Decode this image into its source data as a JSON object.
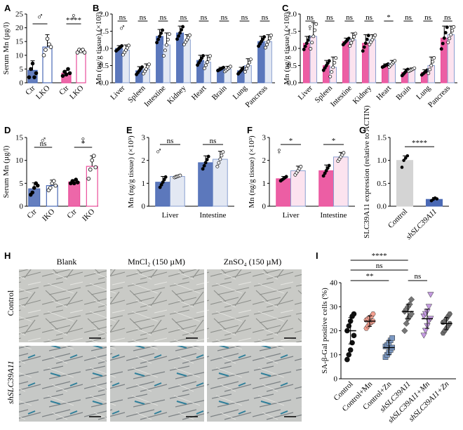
{
  "chart_data": [
    {
      "panel": "A",
      "type": "bar",
      "ylabel": "Serum Mn (µg/l)",
      "ylim": [
        0,
        25
      ],
      "yticks": [
        0,
        5,
        10,
        15,
        20,
        25
      ],
      "categories": [
        "Ctr",
        "LKO",
        "Ctr",
        "LKO"
      ],
      "colors": [
        "#4a69b5",
        "#4a69b5",
        "#ea4c9a",
        "#ea4c9a"
      ],
      "fills": [
        "solid",
        "open",
        "solid",
        "open"
      ],
      "values": [
        4.5,
        13,
        3.5,
        11.5
      ],
      "err": [
        3.5,
        4.5,
        1,
        0.8
      ],
      "points": [
        [
          2,
          5,
          7,
          2,
          3.5
        ],
        [
          10,
          12,
          16,
          14,
          13
        ],
        [
          2.5,
          4,
          3,
          5,
          3.5
        ],
        [
          11,
          12,
          11.5,
          12,
          11
        ]
      ],
      "groups": [
        {
          "sex": "♂",
          "cats": [
            0,
            1
          ],
          "label": ""
        },
        {
          "sex": "♀",
          "cats": [
            2,
            3
          ],
          "label": "****"
        }
      ]
    },
    {
      "panel": "B",
      "type": "bar",
      "ylabel": "Mn (ng/g tissue) (×10³)",
      "sex": "♂",
      "ylim": [
        0,
        2.0
      ],
      "yticks": [
        0.0,
        0.5,
        1.0,
        1.5,
        2.0
      ],
      "categories": [
        "Liver",
        "Spleen",
        "Intestine",
        "Kidney",
        "Heart",
        "Brain",
        "Lung",
        "Pancreas"
      ],
      "series": [
        {
          "values": [
            1.0,
            0.35,
            1.35,
            1.45,
            0.65,
            0.4,
            0.35,
            1.2
          ]
        },
        {
          "values": [
            0.95,
            0.4,
            1.1,
            1.25,
            0.6,
            0.4,
            0.5,
            1.2
          ]
        }
      ],
      "err": [
        [
          0.08,
          0.12,
          0.2,
          0.2,
          0.15,
          0.05,
          0.1,
          0.15
        ],
        [
          0.15,
          0.15,
          0.35,
          0.15,
          0.2,
          0.08,
          0.2,
          0.2
        ]
      ],
      "sig": [
        "ns",
        "ns",
        "ns",
        "ns",
        "ns",
        "ns",
        "ns",
        "ns"
      ]
    },
    {
      "panel": "C",
      "type": "bar",
      "ylabel": "Mn (ng/g tissue) (×10³)",
      "sex": "♀",
      "ylim": [
        0,
        2.0
      ],
      "yticks": [
        0.0,
        0.5,
        1.0,
        1.5,
        2.0
      ],
      "categories": [
        "Liver",
        "Spleen",
        "Intestine",
        "Kidney",
        "Heart",
        "Brain",
        "Lung",
        "Pancreas"
      ],
      "series": [
        {
          "values": [
            1.15,
            0.5,
            1.2,
            1.15,
            0.5,
            0.3,
            0.3,
            1.3
          ]
        },
        {
          "values": [
            1.35,
            0.45,
            1.25,
            1.25,
            0.55,
            0.38,
            0.5,
            1.4
          ]
        }
      ],
      "err": [
        [
          0.2,
          0.15,
          0.1,
          0.25,
          0.05,
          0.1,
          0.08,
          0.35
        ],
        [
          0.4,
          0.3,
          0.2,
          0.15,
          0.1,
          0.05,
          0.25,
          0.25
        ]
      ],
      "sig": [
        "ns",
        "ns",
        "ns",
        "ns",
        "*",
        "ns",
        "ns",
        "ns"
      ]
    },
    {
      "panel": "D",
      "type": "bar",
      "ylabel": "Serum Mn (µg/l)",
      "ylim": [
        0,
        15
      ],
      "yticks": [
        0,
        5,
        10,
        15
      ],
      "categories": [
        "Ctr",
        "IKO",
        "Ctr",
        "IKO"
      ],
      "colors": [
        "#4a69b5",
        "#4a69b5",
        "#ea4c9a",
        "#ea4c9a"
      ],
      "fills": [
        "solid",
        "open",
        "solid",
        "open"
      ],
      "values": [
        3.8,
        4.5,
        5.3,
        8.7
      ],
      "err": [
        1.3,
        1.2,
        0.5,
        2.3
      ],
      "points": [
        [
          2.5,
          3,
          4,
          5,
          4.5
        ],
        [
          3.5,
          4,
          5,
          5.5,
          4.5
        ],
        [
          5,
          5.5,
          5,
          5.8,
          5.2
        ],
        [
          6,
          8,
          10,
          11,
          8.5
        ]
      ],
      "groups": [
        {
          "sex": "♂",
          "cats": [
            0,
            1
          ],
          "label": "ns"
        },
        {
          "sex": "♀",
          "cats": [
            2,
            3
          ],
          "label": "*"
        }
      ]
    },
    {
      "panel": "E",
      "type": "bar",
      "ylabel": "Mn (ng/g tissue) (×10³)",
      "sex": "♂",
      "ylim": [
        0,
        3
      ],
      "yticks": [
        0,
        1,
        2,
        3
      ],
      "categories": [
        "Liver",
        "Intestine"
      ],
      "series": [
        {
          "values": [
            1.05,
            1.9
          ]
        },
        {
          "values": [
            1.3,
            2.05
          ]
        }
      ],
      "err": [
        [
          0.25,
          0.3
        ],
        [
          0.05,
          0.35
        ]
      ],
      "sig": [
        "ns",
        "ns"
      ]
    },
    {
      "panel": "F",
      "type": "bar",
      "ylabel": "Mn (ng/g tissue) (×10³)",
      "sex": "♀",
      "ylim": [
        0,
        3
      ],
      "yticks": [
        0,
        1,
        2,
        3
      ],
      "categories": [
        "Liver",
        "Intestine"
      ],
      "series": [
        {
          "values": [
            1.2,
            1.55
          ]
        },
        {
          "values": [
            1.55,
            2.15
          ]
        }
      ],
      "err": [
        [
          0.1,
          0.25
        ],
        [
          0.2,
          0.2
        ]
      ],
      "sig": [
        "*",
        "*"
      ]
    },
    {
      "panel": "G",
      "type": "bar",
      "ylabel": "SLC39A11 expression (relative to ACTIN)",
      "ylim": [
        0,
        1.5
      ],
      "yticks": [
        0.0,
        0.5,
        1.0,
        1.5
      ],
      "categories": [
        "Control",
        "shSLC39A11"
      ],
      "colors": [
        "#d4d4d4",
        "#4a69b5"
      ],
      "values": [
        1.0,
        0.15
      ],
      "err": [
        0.1,
        0.04
      ],
      "points": [
        [
          0.85,
          1.0,
          1.05,
          1.1
        ],
        [
          0.12,
          0.15,
          0.18,
          0.16
        ]
      ],
      "sig": "****"
    },
    {
      "panel": "I",
      "type": "scatter",
      "ylabel": "SA-β-Gal positive cells (%)",
      "ylim": [
        0,
        40
      ],
      "yticks": [
        0,
        10,
        20,
        30,
        40
      ],
      "categories": [
        "Control",
        "Control+Mn",
        "Control+Zn",
        "shSLC39A11",
        "shSLC39A11+Mn",
        "shSLC39A11+Zn"
      ],
      "colors": [
        "#111111",
        "#f5a090",
        "#7b98c2",
        "#777777",
        "#c49ae0",
        "#6d6d6d"
      ],
      "shapes": [
        "circle",
        "hexagon",
        "square",
        "diamond",
        "triangle-down",
        "hexagon"
      ],
      "means": [
        20,
        24,
        13,
        28,
        25,
        23
      ],
      "err": [
        5.5,
        2.2,
        3.0,
        3.0,
        4.0,
        2.5
      ],
      "points": [
        [
          8,
          10,
          12,
          15,
          18,
          20,
          22,
          24,
          26,
          27
        ],
        [
          21,
          22,
          23,
          23.5,
          24,
          24.5,
          25,
          25.5,
          26,
          27
        ],
        [
          9,
          10,
          11,
          12,
          13,
          13.5,
          14,
          15,
          16,
          17
        ],
        [
          20,
          23,
          25,
          26,
          27,
          28,
          29,
          30,
          31,
          33
        ],
        [
          18,
          20,
          22,
          24,
          25,
          26,
          27,
          28,
          30,
          35
        ],
        [
          19,
          20,
          21,
          22,
          23,
          23.5,
          24,
          25,
          26,
          27
        ]
      ],
      "comparisons": [
        {
          "from": 0,
          "to": 3,
          "label": "****"
        },
        {
          "from": 0,
          "to": 3,
          "label": "ns"
        },
        {
          "from": 0,
          "to": 2,
          "label": "**"
        },
        {
          "from": 3,
          "to": 4,
          "label": "ns"
        }
      ]
    }
  ],
  "panelH": {
    "cols": [
      "Blank",
      "MnCl₂ (150 µM)",
      "ZnSO₄ (150 µM)"
    ],
    "rows": [
      "Control",
      "shSLC39A11"
    ]
  }
}
